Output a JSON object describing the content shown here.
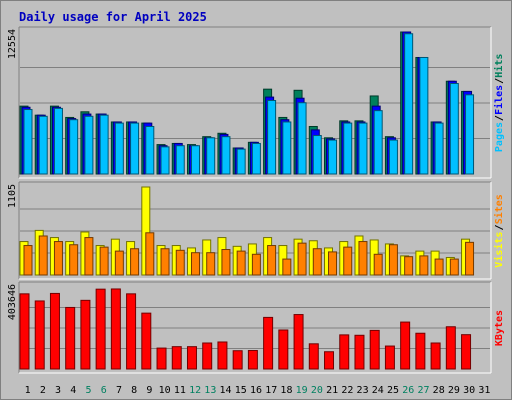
{
  "chart_data": {
    "type": "bar",
    "title": "Daily usage for April 2025",
    "x": [
      "1",
      "2",
      "3",
      "4",
      "5",
      "6",
      "7",
      "8",
      "9",
      "10",
      "11",
      "12",
      "13",
      "14",
      "15",
      "16",
      "17",
      "18",
      "19",
      "20",
      "21",
      "22",
      "23",
      "24",
      "25",
      "26",
      "27",
      "28",
      "29",
      "30",
      "31"
    ],
    "weekend_days": [
      "5",
      "6",
      "12",
      "13",
      "19",
      "20",
      "26",
      "27"
    ],
    "panels": [
      {
        "id": "top",
        "max_label": "12554",
        "ymax": 12554,
        "grid": true,
        "legend": [
          "Pages",
          "Files",
          "Hits"
        ],
        "series": [
          {
            "name": "Hits",
            "color": "#00805c",
            "values": [
              6000,
              5200,
              6000,
              5000,
              5500,
              5300,
              4600,
              4600,
              4500,
              2600,
              2700,
              2600,
              3300,
              3600,
              2300,
              2800,
              7500,
              5000,
              7400,
              4200,
              3200,
              4700,
              4700,
              6900,
              3300,
              12554,
              10300,
              4600,
              8200,
              7300,
              0
            ]
          },
          {
            "name": "Files",
            "color": "#0000ff",
            "values": [
              5900,
              5200,
              5900,
              4900,
              5300,
              5300,
              4600,
              4600,
              4500,
              2500,
              2700,
              2500,
              3200,
              3500,
              2300,
              2800,
              6800,
              4800,
              6700,
              3900,
              3100,
              4600,
              4600,
              6000,
              3200,
              12554,
              10300,
              4600,
              8200,
              7300,
              0
            ]
          },
          {
            "name": "Pages",
            "color": "#00c0ff",
            "values": [
              5700,
              5100,
              5800,
              4800,
              5100,
              5200,
              4500,
              4500,
              4200,
              2400,
              2500,
              2500,
              3200,
              3300,
              2200,
              2700,
              6500,
              4600,
              6300,
              3400,
              3000,
              4500,
              4500,
              5600,
              3000,
              12400,
              10300,
              4500,
              8000,
              7000,
              0
            ]
          }
        ]
      },
      {
        "id": "middle",
        "max_label": "1105",
        "ymax": 1105,
        "grid": true,
        "legend": [
          "Visits",
          "Sites"
        ],
        "series": [
          {
            "name": "Visits",
            "color": "#ffff00",
            "values": [
              420,
              560,
              470,
              420,
              540,
              370,
              450,
              420,
              1105,
              370,
              370,
              340,
              440,
              470,
              360,
              390,
              470,
              370,
              450,
              430,
              340,
              420,
              490,
              440,
              390,
              240,
              300,
              300,
              220,
              450,
              0
            ]
          },
          {
            "name": "Sites",
            "color": "#ff8000",
            "values": [
              370,
              490,
              420,
              380,
              470,
              350,
              300,
              330,
              530,
              330,
              310,
              280,
              280,
              320,
              300,
              260,
              370,
              200,
              400,
              330,
              290,
              350,
              420,
              260,
              380,
              230,
              240,
              200,
              200,
              410,
              0
            ]
          }
        ]
      },
      {
        "id": "bottom",
        "max_label": "403646",
        "ymax": 403646,
        "grid": true,
        "legend": [
          "KBytes"
        ],
        "series": [
          {
            "name": "KBytes",
            "color": "#ff0000",
            "values": [
              370000,
              335000,
              372000,
              303000,
              338000,
              393000,
              394000,
              370000,
              275000,
              103000,
              110000,
              110000,
              128000,
              133000,
              90000,
              91000,
              254000,
              192000,
              268000,
              124000,
              85000,
              168000,
              166000,
              190000,
              113000,
              231000,
              176000,
              128000,
              208000,
              169000,
              0
            ]
          }
        ]
      }
    ]
  }
}
